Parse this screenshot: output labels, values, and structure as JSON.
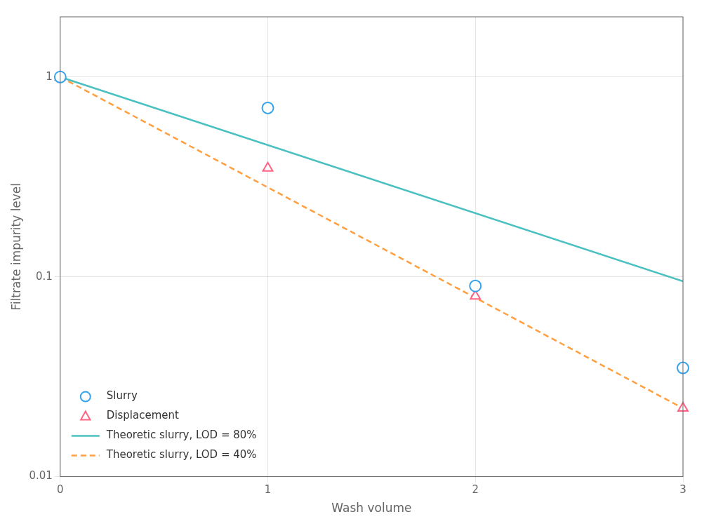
{
  "chart_data": {
    "type": "line",
    "xlabel": "Wash volume",
    "ylabel": "Filtrate impurity level",
    "series": [
      {
        "name": "Slurry",
        "type": "scatter",
        "marker": "circle",
        "x": [
          0,
          1,
          2,
          3
        ],
        "values": [
          1.0,
          0.7,
          0.09,
          0.035
        ]
      },
      {
        "name": "Displacement",
        "type": "scatter",
        "marker": "triangle",
        "x": [
          0,
          1,
          2,
          3
        ],
        "values": [
          1.0,
          0.35,
          0.08,
          0.022
        ]
      },
      {
        "name": "Theoretic slurry, LOD = 80%",
        "type": "line",
        "line_style": "solid",
        "x": [
          0,
          3
        ],
        "values": [
          1.0,
          0.095
        ]
      },
      {
        "name": "Theoretic slurry, LOD = 40%",
        "type": "line",
        "line_style": "dashed",
        "x": [
          0,
          3
        ],
        "values": [
          1.0,
          0.022
        ]
      }
    ],
    "xlim": [
      0.0,
      3.0
    ],
    "xticks": [
      0,
      1,
      2,
      3
    ],
    "ylim": [
      0.01,
      2.0
    ],
    "yticks": [
      0.01,
      0.1,
      1
    ],
    "log": "y",
    "grid": true,
    "legend": "lower left"
  }
}
